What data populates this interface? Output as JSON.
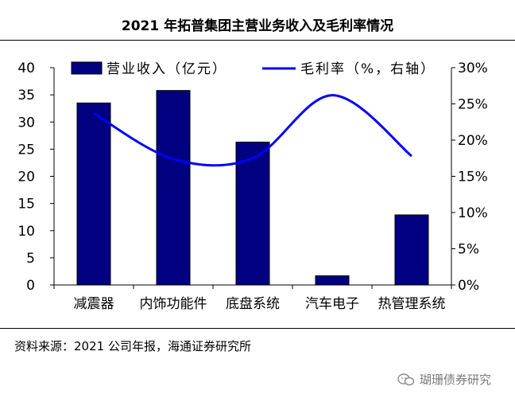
{
  "title": "2021 年拓普集团主营业务收入及毛利率情况",
  "source": "资料来源：2021 公司年报，海通证券研究所",
  "watermark": "瑚珊债券研究",
  "chart_data": {
    "type": "bar",
    "categories": [
      "减震器",
      "内饰功能件",
      "底盘系统",
      "汽车电子",
      "热管理系统"
    ],
    "series": [
      {
        "name": "营业收入（亿元）",
        "type": "bar",
        "axis": "left",
        "color": "#000080",
        "values": [
          33.5,
          35.8,
          26.3,
          1.7,
          12.9
        ]
      },
      {
        "name": "毛利率（%，右轴）",
        "type": "line",
        "axis": "right",
        "color": "#0000ff",
        "values": [
          23.7,
          17.4,
          17.5,
          26.2,
          17.8
        ]
      }
    ],
    "left_axis": {
      "ylim": [
        0,
        40
      ],
      "ticks": [
        "0",
        "5",
        "10",
        "15",
        "20",
        "25",
        "30",
        "35",
        "40"
      ]
    },
    "right_axis": {
      "ylim": [
        0,
        30
      ],
      "ticks": [
        "0%",
        "5%",
        "10%",
        "15%",
        "20%",
        "25%",
        "30%"
      ]
    },
    "grid": false,
    "legend": "top"
  }
}
